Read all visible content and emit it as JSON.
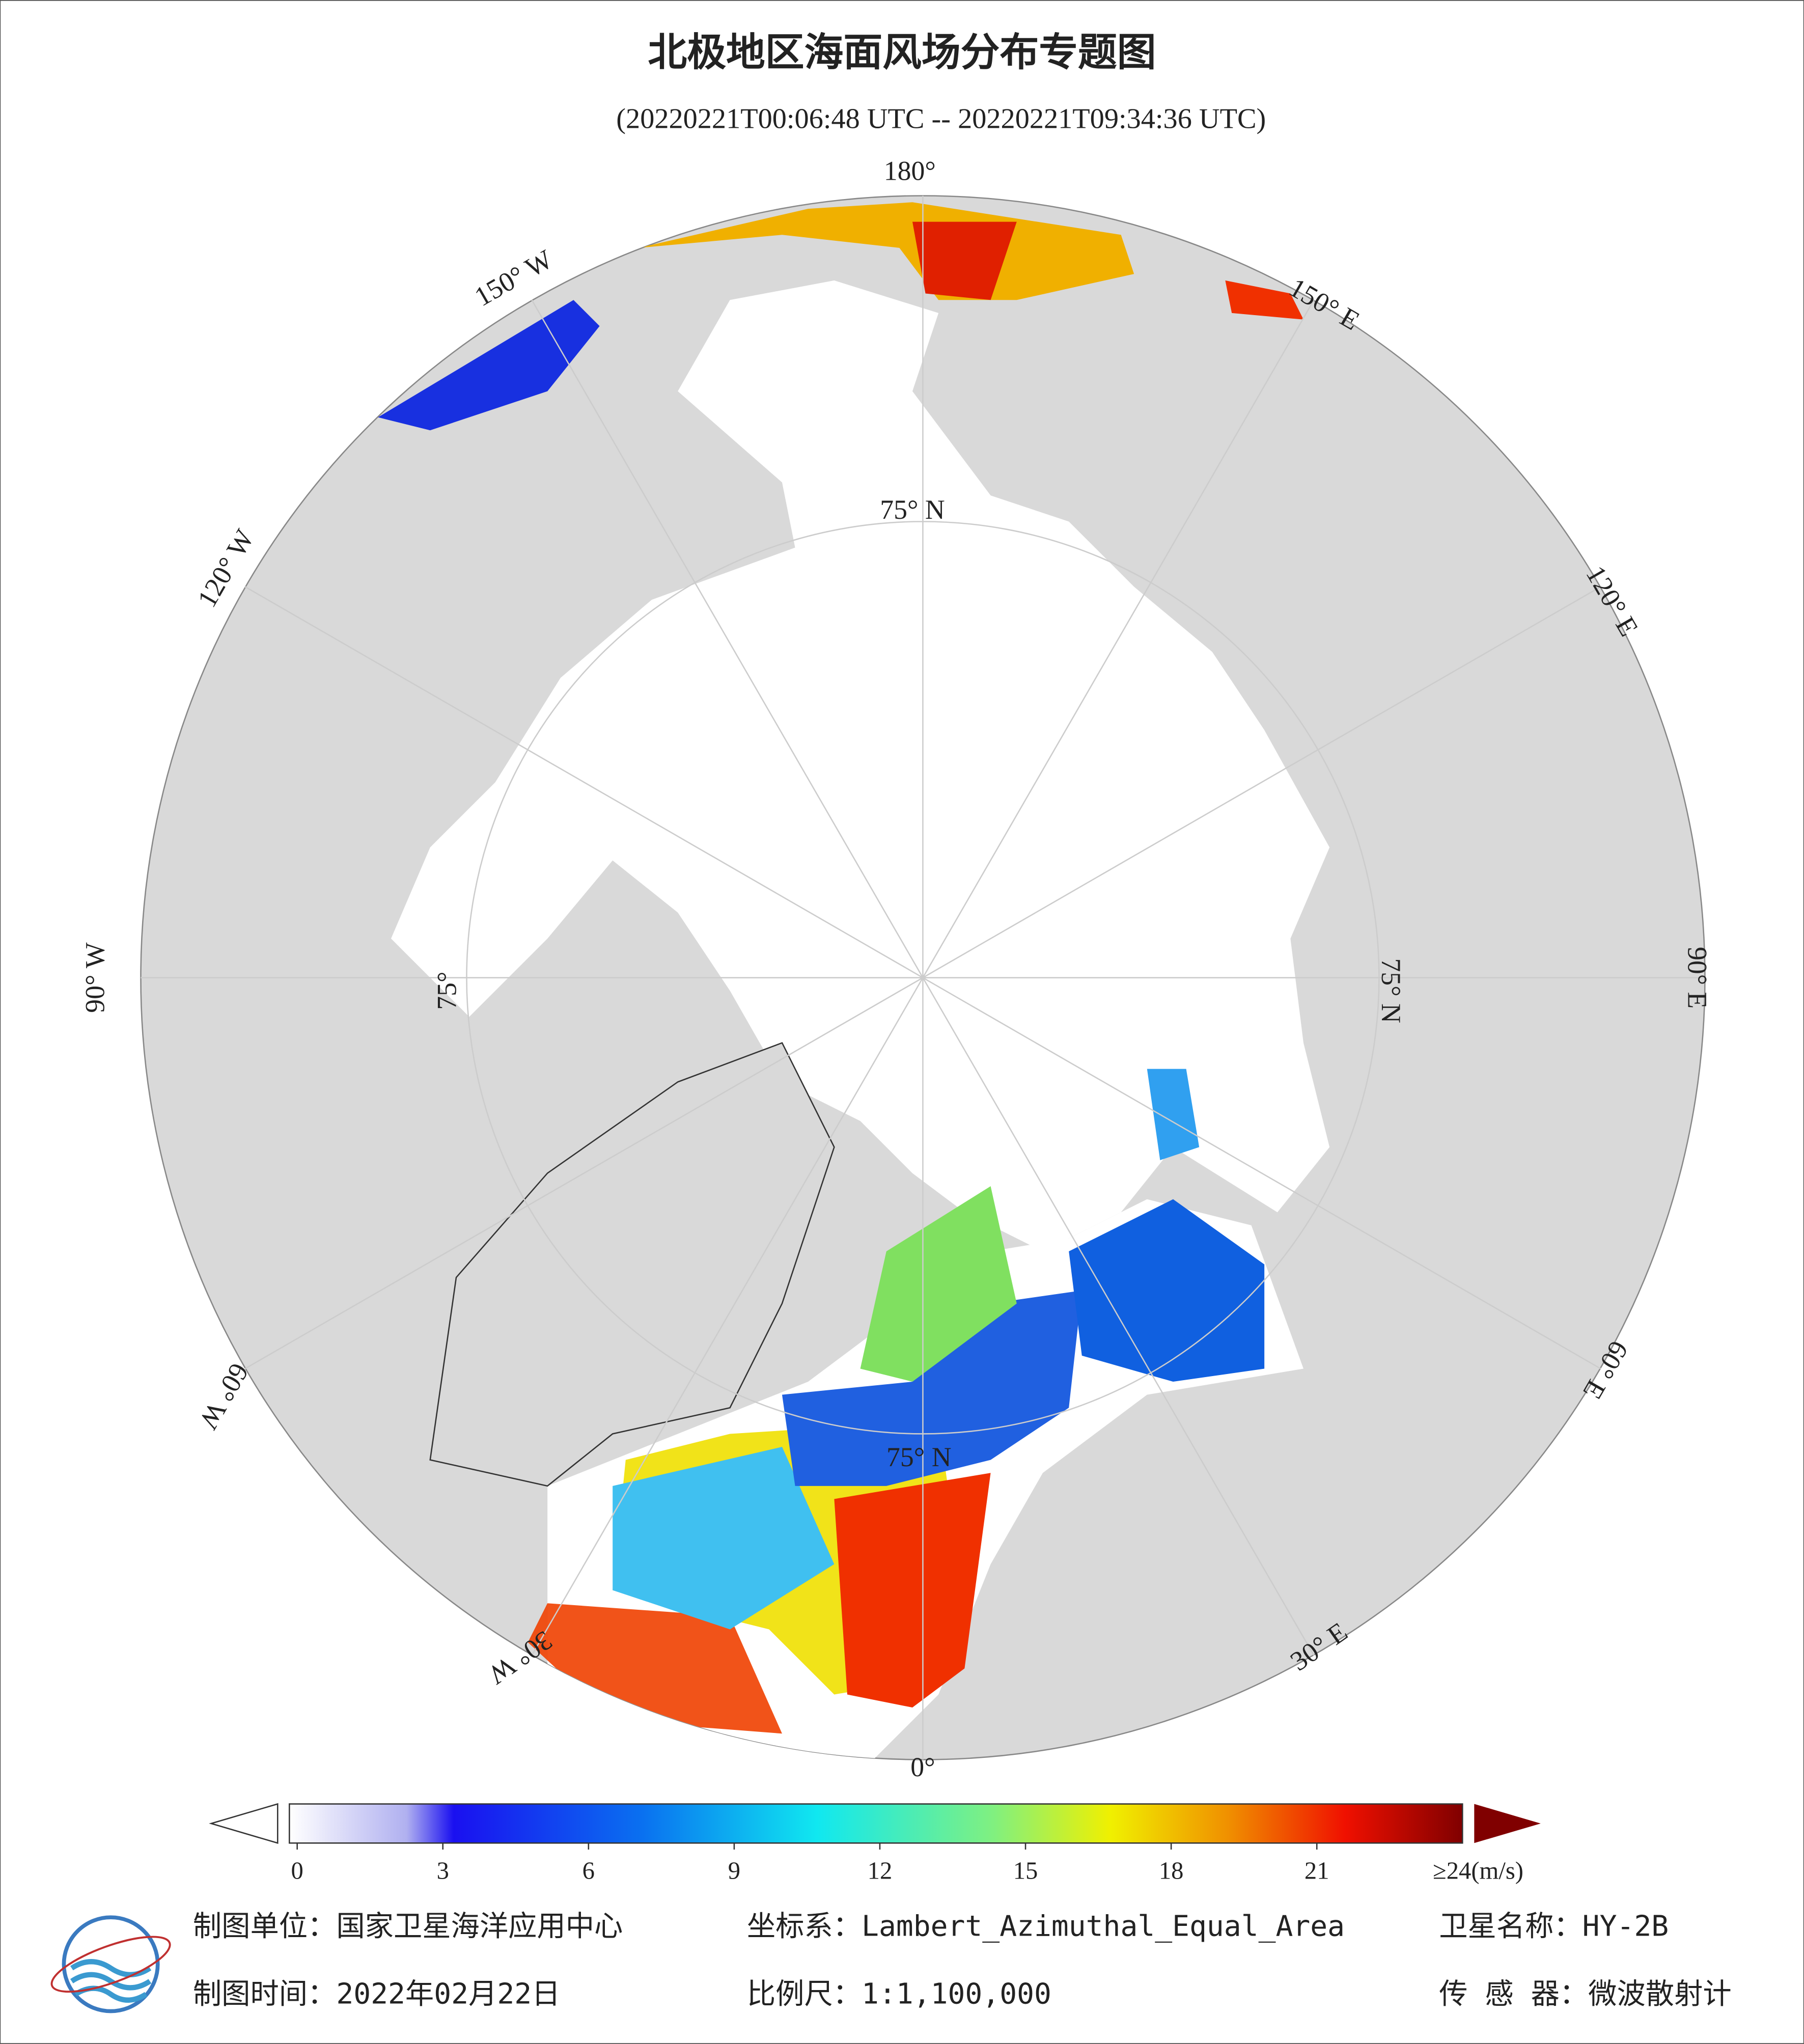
{
  "header": {
    "title": "北极地区海面风场分布专题图",
    "subtitle": "(20220221T00:06:48 UTC -- 20220221T09:34:36 UTC)"
  },
  "map": {
    "meridian_labels": [
      "180°",
      "150° E",
      "120° E",
      "90° E",
      "60° E",
      "30° E",
      "0°",
      "30° W",
      "60° W",
      "90° W",
      "120° W",
      "150° W"
    ],
    "latitude_labels": [
      "75° N",
      "75° N",
      "75°",
      "75° N"
    ]
  },
  "colorbar": {
    "range": [
      0,
      24
    ],
    "ticks": [
      0,
      3,
      6,
      9,
      12,
      15,
      18,
      21
    ],
    "max_label": "≥24(m/s)"
  },
  "footer": {
    "unit": "制图单位：国家卫星海洋应用中心",
    "projection": "坐标系：Lambert_Azimuthal_Equal_Area",
    "satellite": "卫星名称：HY-2B",
    "date": "制图时间：2022年02月22日",
    "scale": "比例尺：1:1,100,000",
    "sensor": "传 感 器：微波散射计"
  }
}
